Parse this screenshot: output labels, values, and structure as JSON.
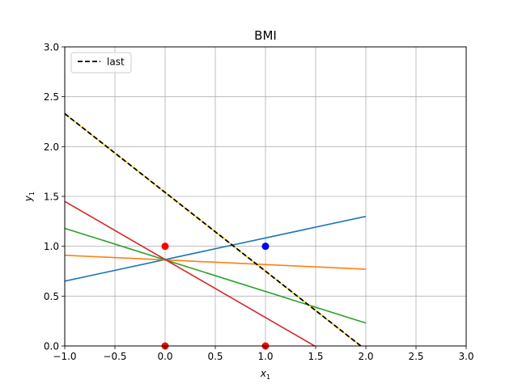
{
  "chart_data": {
    "type": "line",
    "title": "BMI",
    "xlabel": "x",
    "xlabel_sub": "1",
    "ylabel": "y",
    "ylabel_sub": "1",
    "xlim": [
      -1.0,
      3.0
    ],
    "ylim": [
      0.0,
      3.0
    ],
    "xticks": [
      -1.0,
      -0.5,
      0.0,
      0.5,
      1.0,
      1.5,
      2.0,
      2.5,
      3.0
    ],
    "xtick_labels": [
      "−1.0",
      "−0.5",
      "0.0",
      "0.5",
      "1.0",
      "1.5",
      "2.0",
      "2.5",
      "3.0"
    ],
    "yticks": [
      0.0,
      0.5,
      1.0,
      1.5,
      2.0,
      2.5,
      3.0
    ],
    "ytick_labels": [
      "0.0",
      "0.5",
      "1.0",
      "1.5",
      "2.0",
      "2.5",
      "3.0"
    ],
    "grid": true,
    "legend_position": "top-left",
    "series": [
      {
        "color": "#1f77b4",
        "x": [
          -1.0,
          2.0
        ],
        "y": [
          0.65,
          1.3
        ]
      },
      {
        "color": "#ff7f0e",
        "x": [
          -1.0,
          2.0
        ],
        "y": [
          0.91,
          0.77
        ]
      },
      {
        "color": "#2ca02c",
        "x": [
          -1.0,
          2.0
        ],
        "y": [
          1.18,
          0.23
        ]
      },
      {
        "color": "#d62728",
        "x": [
          -1.0,
          1.49
        ],
        "y": [
          1.45,
          0.0
        ]
      },
      {
        "color": "#ffd700",
        "x": [
          -1.0,
          1.95
        ],
        "y": [
          2.33,
          0.0
        ]
      },
      {
        "name": "last",
        "color": "#000000",
        "dashed": true,
        "x": [
          -1.0,
          1.95
        ],
        "y": [
          2.33,
          0.0
        ]
      }
    ],
    "points": [
      {
        "x": 0.0,
        "y": 1.0,
        "color": "#ff0000"
      },
      {
        "x": 0.0,
        "y": 0.0,
        "color": "#ff0000"
      },
      {
        "x": 1.0,
        "y": 0.0,
        "color": "#ff0000"
      },
      {
        "x": 1.0,
        "y": 1.0,
        "color": "#0000ff"
      }
    ]
  }
}
